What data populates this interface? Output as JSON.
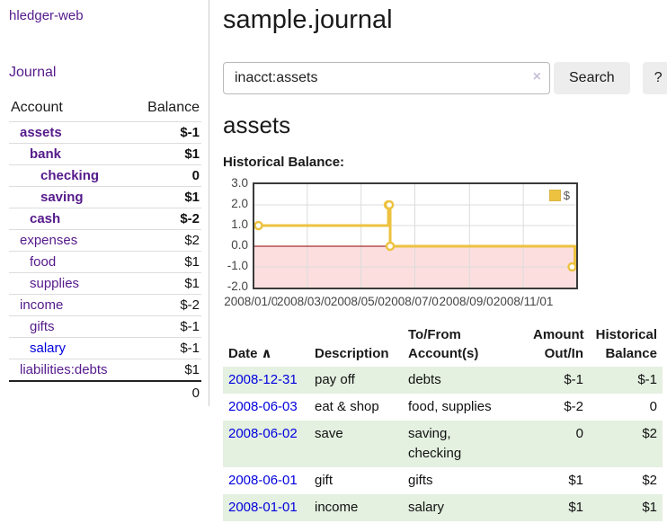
{
  "app": {
    "brand": "hledger-web"
  },
  "sidebar": {
    "journal_link": "Journal",
    "accounts": {
      "header_account": "Account",
      "header_balance": "Balance",
      "rows": [
        {
          "name": "assets",
          "balance": "$-1"
        },
        {
          "name": "bank",
          "balance": "$1"
        },
        {
          "name": "checking",
          "balance": "0"
        },
        {
          "name": "saving",
          "balance": "$1"
        },
        {
          "name": "cash",
          "balance": "$-2"
        },
        {
          "name": "expenses",
          "balance": "$2"
        },
        {
          "name": "food",
          "balance": "$1"
        },
        {
          "name": "supplies",
          "balance": "$1"
        },
        {
          "name": "income",
          "balance": "$-2"
        },
        {
          "name": "gifts",
          "balance": "$-1"
        },
        {
          "name": "salary",
          "balance": "$-1"
        },
        {
          "name": "liabilities:debts",
          "balance": "$1"
        }
      ],
      "total": "0"
    }
  },
  "main": {
    "title": "sample.journal",
    "search": {
      "value": "inacct:assets",
      "clear_icon": "×",
      "search_button": "Search",
      "help_button": "?"
    },
    "heading": "assets"
  },
  "chart_data": {
    "type": "line",
    "step": true,
    "title": "Historical Balance:",
    "x_range": [
      "2008-01-01",
      "2008-12-31"
    ],
    "ylim": [
      -2,
      3
    ],
    "yticks": [
      {
        "label": "3.0",
        "value": 3
      },
      {
        "label": "2.0",
        "value": 2
      },
      {
        "label": "1.0",
        "value": 1
      },
      {
        "label": "0.0",
        "value": 0
      },
      {
        "label": "-1.0",
        "value": -1
      },
      {
        "label": "-2.0",
        "value": -2
      }
    ],
    "xticks": [
      {
        "label": "2008/01/01",
        "date": "2008-01-01"
      },
      {
        "label": "2008/03/01",
        "date": "2008-03-01"
      },
      {
        "label": "2008/05/01",
        "date": "2008-05-01"
      },
      {
        "label": "2008/07/01",
        "date": "2008-07-01"
      },
      {
        "label": "2008/09/01",
        "date": "2008-09-01"
      },
      {
        "label": "2008/11/01",
        "date": "2008-11-01"
      }
    ],
    "series": [
      {
        "name": "$",
        "color": "#edc240",
        "point_fill": "#ffffff",
        "points": [
          {
            "date": "2008-01-01",
            "value": 1
          },
          {
            "date": "2008-06-01",
            "value": 2
          },
          {
            "date": "2008-06-02",
            "value": 2
          },
          {
            "date": "2008-06-03",
            "value": 0
          },
          {
            "date": "2008-12-31",
            "value": -1
          }
        ]
      }
    ],
    "legend": {
      "label": "$",
      "position": "top-right"
    },
    "grid": {
      "on": true,
      "color": "#dcdcdc",
      "border_color": "#3a3a3a"
    },
    "zero_line_color": "#900000",
    "below_zero_fill": "#fcdede"
  },
  "register": {
    "headers": {
      "date": "Date",
      "description": "Description",
      "accounts": "To/From Account(s)",
      "amount": "Amount Out/In",
      "balance": "Historical Balance"
    },
    "sort_icon": "∧",
    "rows": [
      {
        "date": "2008-12-31",
        "description": "pay off",
        "accounts": "debts",
        "amount": "$-1",
        "balance": "$-1"
      },
      {
        "date": "2008-06-03",
        "description": "eat & shop",
        "accounts": "food, supplies",
        "amount": "$-2",
        "balance": "0"
      },
      {
        "date": "2008-06-02",
        "description": "save",
        "accounts": "saving,\nchecking",
        "amount": "0",
        "balance": "$2"
      },
      {
        "date": "2008-06-01",
        "description": "gift",
        "accounts": "gifts",
        "amount": "$1",
        "balance": "$2"
      },
      {
        "date": "2008-01-01",
        "description": "income",
        "accounts": "salary",
        "amount": "$1",
        "balance": "$1"
      }
    ]
  },
  "colors": {
    "link_purple": "#551a8b",
    "link_blue": "#0000dd",
    "negative_strong": "#990000",
    "negative_soft": "#b36b6b",
    "row_green": "#e4f0e0",
    "series_yellow": "#edc240"
  }
}
